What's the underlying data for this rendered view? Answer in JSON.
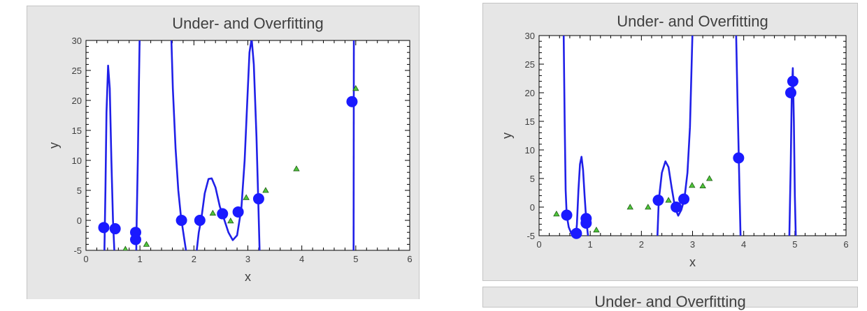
{
  "chart_data": [
    {
      "type": "line",
      "title": "Under- and Overfitting",
      "xlabel": "x",
      "ylabel": "y",
      "xlim": [
        0,
        6
      ],
      "ylim": [
        -5,
        30
      ],
      "xticks": [
        0,
        1,
        2,
        3,
        4,
        5,
        6
      ],
      "yticks": [
        -5,
        0,
        5,
        10,
        15,
        20,
        25,
        30
      ],
      "grid": false,
      "colors": {
        "curve": "#2020e8",
        "train": "#1a1aff",
        "test_fill": "#4fc53a",
        "test_stroke": "#1d5a14"
      },
      "series": [
        {
          "kind": "curve",
          "segments": [
            [
              [
                0.34,
                -6
              ],
              [
                0.36,
                5
              ],
              [
                0.38,
                18
              ],
              [
                0.41,
                25.8
              ],
              [
                0.44,
                22
              ],
              [
                0.47,
                10
              ],
              [
                0.5,
                0
              ],
              [
                0.53,
                -6
              ]
            ],
            [
              [
                0.93,
                -6
              ],
              [
                0.94,
                0
              ],
              [
                0.96,
                10
              ],
              [
                0.98,
                22
              ],
              [
                0.995,
                31
              ]
            ],
            [
              [
                1.58,
                31
              ],
              [
                1.61,
                22
              ],
              [
                1.66,
                12
              ],
              [
                1.71,
                5
              ],
              [
                1.76,
                0.6
              ],
              [
                1.82,
                -3
              ],
              [
                1.87,
                -6
              ]
            ],
            [
              [
                2.04,
                -6
              ],
              [
                2.09,
                -2
              ],
              [
                2.14,
                0.4
              ],
              [
                2.2,
                4.5
              ],
              [
                2.27,
                6.9
              ],
              [
                2.33,
                7
              ],
              [
                2.4,
                5.5
              ],
              [
                2.48,
                2.3
              ],
              [
                2.56,
                0.2
              ],
              [
                2.64,
                -2
              ],
              [
                2.72,
                -3.3
              ],
              [
                2.8,
                -2.5
              ],
              [
                2.88,
                2
              ],
              [
                2.94,
                10
              ],
              [
                2.99,
                20
              ],
              [
                3.03,
                28
              ],
              [
                3.07,
                30.3
              ],
              [
                3.11,
                26
              ],
              [
                3.16,
                14
              ],
              [
                3.19,
                4
              ],
              [
                3.22,
                -6
              ]
            ],
            [
              [
                4.96,
                -6
              ],
              [
                4.965,
                31
              ]
            ]
          ]
        },
        {
          "kind": "train",
          "x": [
            0.33,
            0.54,
            0.92,
            0.92,
            1.77,
            2.11,
            2.53,
            2.82,
            3.2,
            4.93
          ],
          "y": [
            -1.2,
            -1.4,
            -2,
            -3.2,
            0,
            0,
            1.1,
            1.4,
            3.6,
            19.8
          ]
        },
        {
          "kind": "test",
          "x": [
            0.73,
            1.12,
            2.35,
            2.68,
            2.97,
            3.33,
            3.9,
            5.0
          ],
          "y": [
            -4.8,
            -4,
            1.2,
            -0.1,
            3.8,
            5,
            8.6,
            22
          ]
        }
      ]
    },
    {
      "type": "line",
      "title": "Under- and Overfitting",
      "xlabel": "x",
      "ylabel": "y",
      "xlim": [
        0,
        6
      ],
      "ylim": [
        -5,
        30
      ],
      "xticks": [
        0,
        1,
        2,
        3,
        4,
        5,
        6
      ],
      "yticks": [
        -5,
        0,
        5,
        10,
        15,
        20,
        25,
        30
      ],
      "grid": false,
      "colors": {
        "curve": "#2020e8",
        "train": "#1a1aff",
        "test_fill": "#4fc53a",
        "test_stroke": "#1d5a14"
      },
      "series": [
        {
          "kind": "curve",
          "segments": [
            [
              [
                0.48,
                31
              ],
              [
                0.5,
                15
              ],
              [
                0.52,
                3
              ],
              [
                0.54,
                -1.4
              ],
              [
                0.58,
                -3.5
              ],
              [
                0.64,
                -4.8
              ],
              [
                0.69,
                -5.5
              ]
            ],
            [
              [
                0.71,
                -6
              ],
              [
                0.74,
                -3
              ],
              [
                0.77,
                3
              ],
              [
                0.8,
                7.5
              ],
              [
                0.83,
                8.8
              ],
              [
                0.86,
                6.5
              ],
              [
                0.89,
                2
              ],
              [
                0.92,
                -2
              ],
              [
                0.95,
                -4.5
              ],
              [
                0.97,
                -6
              ]
            ],
            [
              [
                2.31,
                -6
              ],
              [
                2.34,
                1.2
              ],
              [
                2.4,
                6
              ],
              [
                2.47,
                8
              ],
              [
                2.53,
                7
              ],
              [
                2.59,
                3.5
              ],
              [
                2.66,
                -0.2
              ],
              [
                2.72,
                -1.5
              ],
              [
                2.78,
                -0.5
              ],
              [
                2.84,
                1.4
              ],
              [
                2.9,
                6
              ],
              [
                2.95,
                14
              ],
              [
                3.0,
                31
              ]
            ],
            [
              [
                3.85,
                31
              ],
              [
                3.88,
                18
              ],
              [
                3.9,
                10
              ],
              [
                3.92,
                2
              ],
              [
                3.94,
                -6
              ]
            ],
            [
              [
                4.89,
                -6
              ],
              [
                4.92,
                8
              ],
              [
                4.94,
                20
              ],
              [
                4.96,
                24.3
              ],
              [
                4.98,
                15
              ],
              [
                5.0,
                2
              ],
              [
                5.02,
                -6
              ]
            ]
          ]
        },
        {
          "kind": "train",
          "x": [
            0.54,
            0.73,
            0.92,
            0.92,
            2.33,
            2.68,
            2.83,
            3.9,
            4.92,
            4.96
          ],
          "y": [
            -1.4,
            -4.6,
            -2,
            -2.8,
            1.2,
            0,
            1.4,
            8.6,
            20,
            22
          ]
        },
        {
          "kind": "test",
          "x": [
            0.34,
            1.12,
            1.78,
            2.13,
            2.53,
            2.99,
            3.2,
            3.33
          ],
          "y": [
            -1.2,
            -4,
            0,
            0,
            1.2,
            3.8,
            3.7,
            5
          ]
        }
      ]
    },
    {
      "type": "line",
      "title": "Under- and Overfitting"
    }
  ]
}
